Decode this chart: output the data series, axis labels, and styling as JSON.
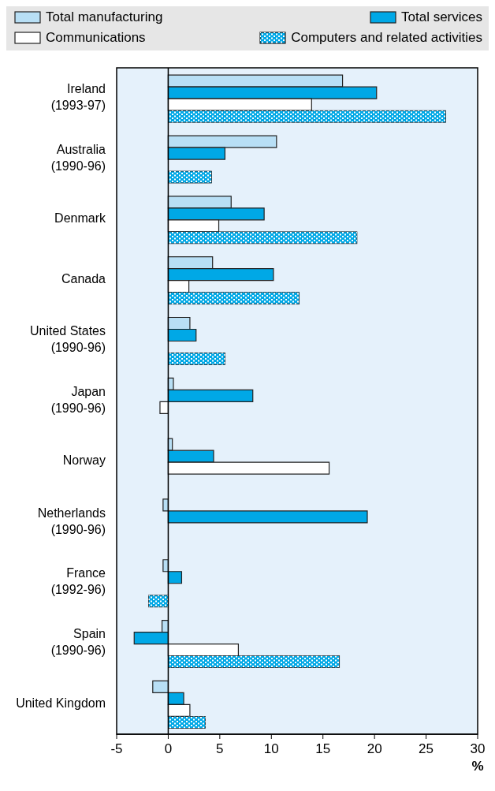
{
  "chart_data": {
    "type": "bar",
    "orientation": "horizontal",
    "xlabel": "%",
    "categories": [
      "Ireland\n(1993-97)",
      "Australia\n(1990-96)",
      "Denmark",
      "Canada",
      "United States\n(1990-96)",
      "Japan\n(1990-96)",
      "Norway",
      "Netherlands\n(1990-96)",
      "France\n(1992-96)",
      "Spain\n(1990-96)",
      "United Kingdom"
    ],
    "series": [
      {
        "name": "Total manufacturing",
        "color": "#b8dff5",
        "values": [
          16.9,
          10.5,
          6.1,
          4.3,
          2.1,
          0.5,
          0.4,
          -0.5,
          -0.5,
          -0.6,
          -1.5
        ]
      },
      {
        "name": "Total services",
        "color": "#00a8e6",
        "values": [
          20.2,
          5.5,
          9.3,
          10.2,
          2.7,
          8.2,
          4.4,
          19.3,
          1.3,
          -3.3,
          1.5
        ]
      },
      {
        "name": "Communications",
        "color": "#ffffff",
        "values": [
          13.9,
          null,
          4.9,
          2.0,
          null,
          -0.8,
          15.6,
          null,
          null,
          6.8,
          2.1
        ]
      },
      {
        "name": "Computers and related activities",
        "color": "#00a8e6",
        "values": [
          26.9,
          4.2,
          18.3,
          12.7,
          5.5,
          null,
          null,
          null,
          -1.9,
          16.6,
          3.6
        ]
      }
    ],
    "xlim": [
      -5,
      30
    ],
    "xticks": [
      -5,
      0,
      5,
      10,
      15,
      20,
      25,
      30
    ],
    "ref_lines": [
      {
        "axis": "x",
        "value": 0
      }
    ],
    "legend": "top",
    "grid": false
  }
}
